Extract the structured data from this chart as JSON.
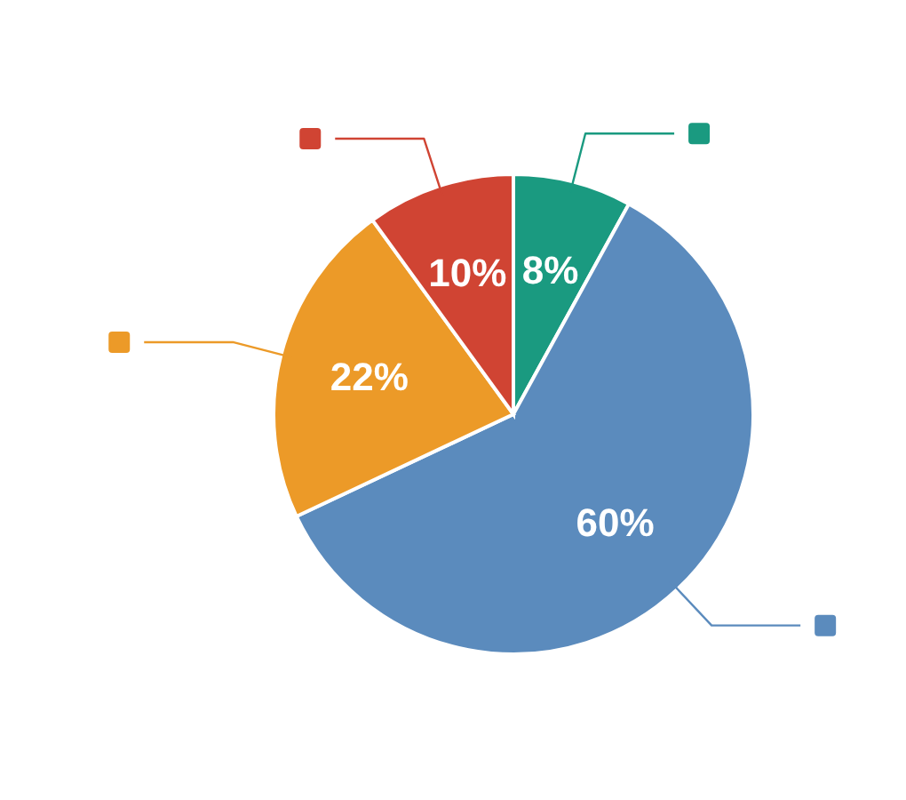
{
  "chart_data": {
    "type": "pie",
    "categories": [
      null,
      null,
      null,
      null
    ],
    "values": [
      8,
      60,
      22,
      10
    ],
    "colors": [
      "#1a9a80",
      "#5b8bbd",
      "#ec9a28",
      "#d04433"
    ],
    "value_labels": [
      "8%",
      "60%",
      "22%",
      "10%"
    ]
  }
}
